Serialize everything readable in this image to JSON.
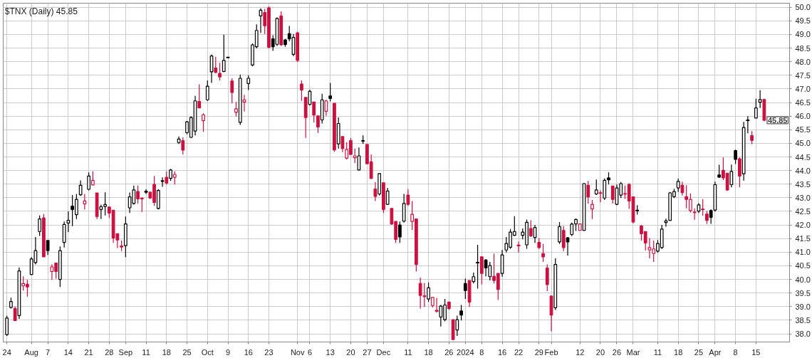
{
  "chart_data": {
    "type": "candlestick",
    "title": "$TNX (Daily) 45.85",
    "annotations": [
      "45.85"
    ],
    "categories": [
      "24",
      null,
      null,
      null,
      null,
      null,
      "Aug",
      null,
      null,
      null,
      "7",
      null,
      null,
      null,
      null,
      "14",
      null,
      null,
      null,
      null,
      "21",
      null,
      null,
      null,
      null,
      "28",
      null,
      null,
      null,
      "Sep",
      null,
      null,
      null,
      null,
      "11",
      null,
      null,
      null,
      null,
      "18",
      null,
      null,
      null,
      null,
      "25",
      null,
      null,
      null,
      null,
      "Oct",
      null,
      null,
      null,
      null,
      "9",
      null,
      null,
      null,
      null,
      "16",
      null,
      null,
      null,
      null,
      "23",
      null,
      null,
      null,
      null,
      null,
      null,
      "Nov",
      null,
      null,
      "6",
      null,
      null,
      null,
      null,
      "13",
      null,
      null,
      null,
      null,
      "20",
      null,
      null,
      null,
      "27",
      null,
      null,
      null,
      "Dec",
      null,
      null,
      null,
      null,
      null,
      "11",
      null,
      null,
      null,
      null,
      "18",
      null,
      null,
      null,
      null,
      "26",
      null,
      null,
      null,
      "2024",
      null,
      null,
      null,
      "8",
      null,
      null,
      null,
      null,
      "16",
      null,
      null,
      null,
      "22",
      null,
      null,
      null,
      null,
      "29",
      null,
      null,
      "Feb",
      null,
      null,
      null,
      null,
      null,
      null,
      "12",
      null,
      null,
      null,
      null,
      "20",
      null,
      null,
      null,
      "26",
      null,
      null,
      null,
      "Mar",
      null,
      null,
      null,
      null,
      null,
      "11",
      null,
      null,
      null,
      null,
      "18",
      null,
      null,
      null,
      null,
      "25",
      null,
      null,
      null,
      "Apr",
      null,
      null,
      null,
      null,
      "8",
      null,
      null,
      null,
      null,
      "15",
      null,
      null
    ],
    "ohlc": [
      [
        37.97,
        38.67,
        37.92,
        38.58
      ],
      [
        38.97,
        39.33,
        38.93,
        39.19
      ],
      [
        38.93,
        39.0,
        38.49,
        38.49
      ],
      [
        38.67,
        40.44,
        38.55,
        40.31
      ],
      [
        39.76,
        40.11,
        39.59,
        39.85
      ],
      [
        39.82,
        39.98,
        39.37,
        39.72
      ],
      [
        40.18,
        40.82,
        40.16,
        40.75
      ],
      [
        40.62,
        41.56,
        40.55,
        41.06
      ],
      [
        41.76,
        42.35,
        41.6,
        42.22
      ],
      [
        42.26,
        42.4,
        40.83,
        40.83
      ],
      [
        41.43,
        41.43,
        40.9,
        41.06
      ],
      [
        40.29,
        40.55,
        39.98,
        40.46
      ],
      [
        40.6,
        40.6,
        40.03,
        40.29
      ],
      [
        40.0,
        41.21,
        39.72,
        41.06
      ],
      [
        41.36,
        42.13,
        41.17,
        42.02
      ],
      [
        42.07,
        42.5,
        41.74,
        42.17
      ],
      [
        42.69,
        43.1,
        41.96,
        42.57
      ],
      [
        42.38,
        43.14,
        42.22,
        42.94
      ],
      [
        43.11,
        43.64,
        43.07,
        43.46
      ],
      [
        42.78,
        43.14,
        42.57,
        42.88
      ],
      [
        43.31,
        43.93,
        43.27,
        43.8
      ],
      [
        43.47,
        43.97,
        43.47,
        43.64
      ],
      [
        43.18,
        43.18,
        42.22,
        42.31
      ],
      [
        42.57,
        42.75,
        42.22,
        42.67
      ],
      [
        42.68,
        43.2,
        42.35,
        42.75
      ],
      [
        42.66,
        42.66,
        42.26,
        42.44
      ],
      [
        42.54,
        42.54,
        41.34,
        41.52
      ],
      [
        41.68,
        41.68,
        41.15,
        41.45
      ],
      [
        41.23,
        41.43,
        41.04,
        41.19
      ],
      [
        41.24,
        42.31,
        40.82,
        42.04
      ],
      [
        42.63,
        43.19,
        42.44,
        43.03
      ],
      [
        42.79,
        43.45,
        42.75,
        43.29
      ],
      [
        43.23,
        43.45,
        42.79,
        42.96
      ],
      [
        42.99,
        43.0,
        42.48,
        42.96
      ],
      [
        43.2,
        43.31,
        43.14,
        43.23
      ],
      [
        43.2,
        43.23,
        42.96,
        42.99
      ],
      [
        43.49,
        43.8,
        42.7,
        42.83
      ],
      [
        42.61,
        43.32,
        42.57,
        43.27
      ],
      [
        43.6,
        43.75,
        43.4,
        43.63
      ],
      [
        43.75,
        43.97,
        43.49,
        43.54
      ],
      [
        43.71,
        44.06,
        43.62,
        44.02
      ],
      [
        43.75,
        43.97,
        43.49,
        43.86
      ],
      [
        45.03,
        45.25,
        44.98,
        45.16
      ],
      [
        45.1,
        45.22,
        44.59,
        44.75
      ],
      [
        45.39,
        45.82,
        45.33,
        45.79
      ],
      [
        45.22,
        45.99,
        45.2,
        45.95
      ],
      [
        45.45,
        46.74,
        45.29,
        46.56
      ],
      [
        46.54,
        47.17,
        46.3,
        46.3
      ],
      [
        45.83,
        46.1,
        45.42,
        46.05
      ],
      [
        46.6,
        47.31,
        46.56,
        47.1
      ],
      [
        47.63,
        48.27,
        47.22,
        48.21
      ],
      [
        47.77,
        48.18,
        47.57,
        47.61
      ],
      [
        47.57,
        47.96,
        47.31,
        47.44
      ],
      [
        47.64,
        48.99,
        47.61,
        48.05
      ],
      [
        48.15,
        48.17,
        48.14,
        48.16
      ],
      [
        47.29,
        47.39,
        46.47,
        46.87
      ],
      [
        46.14,
        46.52,
        45.99,
        46.27
      ],
      [
        45.77,
        47.53,
        45.68,
        47.39
      ],
      [
        46.52,
        46.78,
        46.17,
        46.6
      ],
      [
        47.2,
        47.5,
        46.96,
        47.39
      ],
      [
        47.88,
        48.67,
        47.83,
        48.62
      ],
      [
        48.55,
        49.37,
        48.49,
        49.15
      ],
      [
        49.68,
        49.96,
        49.06,
        49.89
      ],
      [
        49.81,
        49.94,
        49.02,
        49.32
      ],
      [
        49.98,
        50.03,
        48.49,
        48.53
      ],
      [
        48.84,
        48.97,
        48.4,
        48.55
      ],
      [
        48.64,
        49.63,
        48.58,
        49.59
      ],
      [
        49.68,
        49.85,
        48.58,
        48.62
      ],
      [
        48.8,
        48.84,
        48.55,
        48.63
      ],
      [
        49.03,
        49.31,
        48.75,
        48.84
      ],
      [
        48.27,
        49.02,
        48.2,
        48.89
      ],
      [
        49.06,
        49.1,
        47.99,
        48.05
      ],
      [
        47.18,
        47.31,
        46.56,
        46.96
      ],
      [
        46.69,
        46.69,
        45.2,
        45.95
      ],
      [
        46.43,
        46.97,
        46.39,
        46.91
      ],
      [
        46.52,
        46.52,
        45.77,
        46.04
      ],
      [
        46.01,
        46.01,
        45.38,
        45.6
      ],
      [
        45.86,
        46.82,
        45.73,
        46.6
      ],
      [
        46.18,
        46.6,
        46.01,
        46.56
      ],
      [
        46.74,
        47.22,
        46.54,
        46.65
      ],
      [
        46.47,
        46.47,
        44.69,
        44.76
      ],
      [
        44.98,
        45.95,
        44.81,
        45.73
      ],
      [
        45.25,
        45.25,
        44.68,
        44.81
      ],
      [
        44.46,
        45.04,
        44.41,
        44.78
      ],
      [
        45.1,
        45.2,
        44.59,
        44.59
      ],
      [
        44.47,
        44.81,
        44.28,
        44.54
      ],
      [
        44.02,
        44.85,
        44.02,
        44.54
      ],
      [
        45.1,
        45.29,
        44.98,
        45.09
      ],
      [
        44.96,
        44.96,
        44.25,
        44.25
      ],
      [
        44.32,
        44.59,
        43.69,
        43.71
      ],
      [
        43.32,
        43.58,
        42.88,
        43.05
      ],
      [
        43.14,
        43.89,
        43.08,
        43.89
      ],
      [
        43.55,
        43.55,
        42.44,
        42.57
      ],
      [
        42.76,
        43.36,
        42.74,
        43.25
      ],
      [
        42.61,
        42.61,
        42.0,
        42.04
      ],
      [
        42.13,
        42.13,
        41.34,
        41.47
      ],
      [
        42.0,
        42.13,
        41.34,
        41.56
      ],
      [
        42.14,
        43.14,
        42.09,
        42.79
      ],
      [
        43.1,
        43.32,
        42.7,
        42.76
      ],
      [
        42.13,
        42.88,
        41.82,
        42.39
      ],
      [
        42.22,
        42.22,
        40.29,
        40.55
      ],
      [
        39.85,
        40.07,
        38.93,
        39.41
      ],
      [
        39.4,
        39.87,
        38.99,
        39.37
      ],
      [
        39.28,
        39.89,
        39.17,
        39.69
      ],
      [
        39.04,
        39.34,
        38.97,
        39.34
      ],
      [
        38.86,
        39.32,
        38.78,
        38.84
      ],
      [
        38.62,
        39.06,
        38.27,
        39.02
      ],
      [
        38.52,
        39.28,
        38.46,
        39.06
      ],
      [
        39.17,
        39.17,
        38.88,
        38.93
      ],
      [
        38.52,
        38.52,
        37.79,
        37.79
      ],
      [
        38.14,
        38.67,
        37.92,
        38.52
      ],
      [
        38.84,
        39.06,
        38.49,
        38.69
      ],
      [
        39.85,
        40.03,
        39.28,
        39.59
      ],
      [
        39.96,
        39.96,
        38.99,
        39.17
      ],
      [
        39.92,
        40.25,
        39.85,
        40.1
      ],
      [
        40.63,
        41.27,
        39.66,
        40.61
      ],
      [
        40.83,
        40.83,
        39.81,
        40.22
      ],
      [
        40.71,
        40.75,
        40.11,
        40.42
      ],
      [
        40.1,
        40.64,
        39.96,
        40.51
      ],
      [
        40.11,
        40.95,
        39.85,
        39.96
      ],
      [
        40.22,
        40.22,
        39.25,
        39.63
      ],
      [
        40.22,
        41.08,
        40.1,
        40.9
      ],
      [
        41.08,
        41.56,
        40.99,
        41.32
      ],
      [
        41.18,
        41.85,
        41.12,
        41.74
      ],
      [
        41.62,
        42.32,
        41.6,
        41.76
      ],
      [
        41.26,
        41.39,
        40.99,
        41.24
      ],
      [
        41.62,
        41.87,
        41.47,
        41.74
      ],
      [
        41.27,
        42.2,
        41.12,
        42.1
      ],
      [
        41.87,
        42.17,
        41.56,
        41.6
      ],
      [
        41.54,
        42.0,
        41.34,
        41.91
      ],
      [
        41.36,
        41.52,
        41.12,
        41.17
      ],
      [
        40.95,
        41.3,
        40.64,
        40.83
      ],
      [
        40.42,
        40.55,
        39.57,
        39.81
      ],
      [
        39.39,
        39.39,
        38.1,
        38.69
      ],
      [
        38.96,
        40.77,
        38.88,
        40.55
      ],
      [
        41.38,
        42.11,
        41.3,
        41.94
      ],
      [
        41.8,
        41.96,
        41.04,
        41.17
      ],
      [
        41.53,
        41.56,
        40.88,
        41.38
      ],
      [
        41.65,
        42.09,
        41.59,
        42.03
      ],
      [
        42.04,
        42.24,
        41.78,
        42.2
      ],
      [
        41.8,
        42.04,
        41.8,
        42.04
      ],
      [
        41.8,
        43.54,
        41.78,
        43.52
      ],
      [
        43.46,
        43.62,
        42.79,
        43.03
      ],
      [
        42.59,
        42.92,
        42.22,
        42.76
      ],
      [
        43.14,
        43.67,
        43.1,
        43.29
      ],
      [
        43.18,
        43.27,
        42.83,
        43.17
      ],
      [
        42.99,
        43.71,
        42.92,
        43.64
      ],
      [
        43.73,
        43.93,
        43.49,
        43.66
      ],
      [
        43.43,
        43.43,
        42.79,
        42.94
      ],
      [
        42.76,
        43.49,
        42.73,
        43.36
      ],
      [
        43.1,
        43.58,
        42.99,
        43.52
      ],
      [
        43.15,
        43.45,
        42.96,
        43.14
      ],
      [
        43.49,
        43.53,
        42.59,
        42.88
      ],
      [
        43.03,
        43.03,
        42.06,
        42.11
      ],
      [
        42.54,
        42.73,
        42.38,
        42.53
      ],
      [
        41.96,
        42.0,
        41.43,
        41.68
      ],
      [
        41.76,
        41.76,
        41.06,
        41.34
      ],
      [
        41.08,
        41.52,
        40.77,
        41.17
      ],
      [
        40.95,
        41.43,
        40.64,
        41.12
      ],
      [
        41.04,
        41.45,
        40.99,
        41.32
      ],
      [
        41.17,
        42.0,
        41.12,
        41.85
      ],
      [
        42.09,
        42.23,
        41.94,
        42.15
      ],
      [
        42.17,
        43.21,
        42.15,
        43.18
      ],
      [
        43.04,
        43.33,
        42.99,
        43.23
      ],
      [
        43.36,
        43.7,
        43.21,
        43.6
      ],
      [
        43.46,
        43.59,
        43.08,
        43.19
      ],
      [
        43.04,
        43.46,
        42.61,
        42.94
      ],
      [
        42.53,
        43.16,
        42.46,
        42.94
      ],
      [
        42.47,
        42.61,
        42.19,
        42.46
      ],
      [
        42.51,
        42.8,
        42.44,
        42.74
      ],
      [
        42.58,
        42.95,
        42.34,
        42.57
      ],
      [
        42.4,
        42.51,
        42.04,
        42.17
      ],
      [
        42.53,
        42.57,
        42.04,
        42.28
      ],
      [
        42.55,
        43.59,
        42.49,
        43.48
      ],
      [
        43.84,
        44.21,
        43.73,
        43.76
      ],
      [
        44.01,
        44.48,
        43.65,
        43.73
      ],
      [
        43.9,
        43.9,
        43.25,
        43.29
      ],
      [
        43.48,
        44.22,
        43.38,
        43.97
      ],
      [
        44.73,
        44.77,
        44.24,
        44.41
      ],
      [
        44.43,
        44.48,
        43.39,
        43.8
      ],
      [
        43.88,
        45.79,
        43.63,
        45.58
      ],
      [
        45.86,
        46.0,
        45.37,
        45.84
      ],
      [
        45.28,
        45.45,
        44.97,
        45.11
      ],
      [
        45.93,
        46.64,
        45.93,
        46.3
      ],
      [
        46.51,
        46.95,
        46.3,
        46.61
      ],
      [
        46.61,
        46.64,
        45.81,
        45.85
      ]
    ],
    "colors": [
      "#000000",
      "#000000",
      "#cc1040",
      "#000000",
      "#cc1040",
      "#cc1040",
      "#000000",
      "#000000",
      "#000000",
      "#cc1040",
      "#000000",
      "#cc1040",
      "#cc1040",
      "#000000",
      "#000000",
      "#000000",
      "#000000",
      "#000000",
      "#000000",
      "#cc1040",
      "#000000",
      "#cc1040",
      "#cc1040",
      "#000000",
      "#000000",
      "#cc1040",
      "#cc1040",
      "#cc1040",
      "#cc1040",
      "#000000",
      "#000000",
      "#000000",
      "#cc1040",
      "#cc1040",
      "#000000",
      "#cc1040",
      "#cc1040",
      "#000000",
      "#000000",
      "#cc1040",
      "#000000",
      "#cc1040",
      "#000000",
      "#cc1040",
      "#000000",
      "#000000",
      "#000000",
      "#cc1040",
      "#cc1040",
      "#000000",
      "#000000",
      "#cc1040",
      "#cc1040",
      "#000000",
      "#000000",
      "#cc1040",
      "#cc1040",
      "#000000",
      "#cc1040",
      "#000000",
      "#000000",
      "#000000",
      "#000000",
      "#cc1040",
      "#cc1040",
      "#000000",
      "#000000",
      "#cc1040",
      "#000000",
      "#000000",
      "#000000",
      "#cc1040",
      "#cc1040",
      "#cc1040",
      "#000000",
      "#cc1040",
      "#cc1040",
      "#000000",
      "#cc1040",
      "#000000",
      "#cc1040",
      "#000000",
      "#cc1040",
      "#cc1040",
      "#cc1040",
      "#cc1040",
      "#000000",
      "#000000",
      "#cc1040",
      "#cc1040",
      "#cc1040",
      "#000000",
      "#cc1040",
      "#000000",
      "#cc1040",
      "#cc1040",
      "#000000",
      "#000000",
      "#cc1040",
      "#cc1040",
      "#cc1040",
      "#cc1040",
      "#cc1040",
      "#000000",
      "#cc1040",
      "#cc1040",
      "#000000",
      "#000000",
      "#cc1040",
      "#cc1040",
      "#000000",
      "#000000",
      "#000000",
      "#cc1040",
      "#000000",
      "#000000",
      "#cc1040",
      "#000000",
      "#000000",
      "#cc1040",
      "#cc1040",
      "#000000",
      "#000000",
      "#000000",
      "#000000",
      "#cc1040",
      "#000000",
      "#000000",
      "#cc1040",
      "#000000",
      "#cc1040",
      "#cc1040",
      "#cc1040",
      "#cc1040",
      "#000000",
      "#000000",
      "#cc1040",
      "#000000",
      "#000000",
      "#000000",
      "#cc1040",
      "#000000",
      "#cc1040",
      "#cc1040",
      "#000000",
      "#cc1040",
      "#000000",
      "#000000",
      "#cc1040",
      "#000000",
      "#000000",
      "#cc1040",
      "#cc1040",
      "#cc1040",
      "#000000",
      "#cc1040",
      "#cc1040",
      "#cc1040",
      "#cc1040",
      "#000000",
      "#000000",
      "#000000",
      "#000000",
      "#000000",
      "#000000",
      "#cc1040",
      "#cc1040",
      "#cc1040",
      "#cc1040",
      "#000000",
      "#cc1040",
      "#cc1040",
      "#000000",
      "#000000",
      "#000000",
      "#cc1040",
      "#cc1040",
      "#000000",
      "#000000",
      "#cc1040",
      "#000000",
      "#000000",
      "#cc1040",
      "#000000",
      "#000000",
      "#cc1040"
    ],
    "ylim": [
      37.7,
      50.15
    ],
    "yticks": [
      {
        "value": 38,
        "label": "38.0"
      },
      {
        "value": 38.5,
        "label": "38.5"
      },
      {
        "value": 39,
        "label": "39.0"
      },
      {
        "value": 39.5,
        "label": "39.5"
      },
      {
        "value": 40,
        "label": "40.0"
      },
      {
        "value": 40.5,
        "label": "40.5"
      },
      {
        "value": 41,
        "label": "41.0"
      },
      {
        "value": 41.5,
        "label": "41.5"
      },
      {
        "value": 42,
        "label": "42.0"
      },
      {
        "value": 42.5,
        "label": "42.5"
      },
      {
        "value": 43,
        "label": "43.0"
      },
      {
        "value": 43.5,
        "label": "43.5"
      },
      {
        "value": 44,
        "label": "44.0"
      },
      {
        "value": 44.5,
        "label": "44.5"
      },
      {
        "value": 45,
        "label": "45.0"
      },
      {
        "value": 45.5,
        "label": "45.5"
      },
      {
        "value": 46,
        "label": "46.0"
      },
      {
        "value": 46.5,
        "label": "46.5"
      },
      {
        "value": 47,
        "label": "47.0"
      },
      {
        "value": 47.5,
        "label": "47.5"
      },
      {
        "value": 48,
        "label": "48.0"
      },
      {
        "value": 48.5,
        "label": "48.5"
      },
      {
        "value": 49,
        "label": "49.0"
      },
      {
        "value": 49.5,
        "label": "49.5"
      },
      {
        "value": 50,
        "label": "50.0"
      }
    ],
    "grid": true
  }
}
